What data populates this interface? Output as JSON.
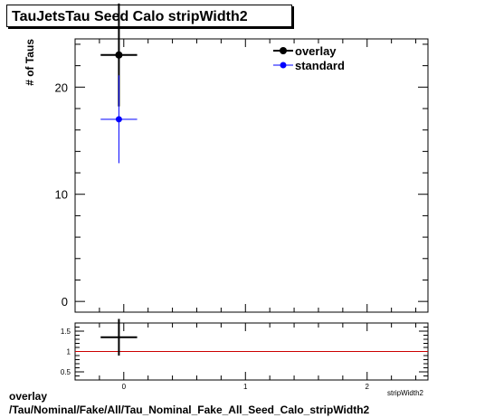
{
  "title": "TauJetsTau Seed Calo stripWidth2",
  "footer": {
    "line1": "overlay",
    "line2": "/Tau/Nominal/Fake/All/Tau_Nominal_Fake_All_Seed_Calo_stripWidth2"
  },
  "colors": {
    "overlay": "#000000",
    "standard": "#0000ff",
    "ratio_line": "#cc0000"
  },
  "chart_data": [
    {
      "type": "scatter",
      "ylabel": "# of Taus",
      "xlabel": "stripWidth2",
      "xlim": [
        -0.4,
        2.5
      ],
      "ylim": [
        -1,
        24.5
      ],
      "x_ticks": [
        0,
        1,
        2
      ],
      "y_ticks": [
        0,
        10,
        20
      ],
      "legend": {
        "placement": "top-right",
        "entries": [
          "overlay",
          "standard"
        ]
      },
      "series": [
        {
          "name": "overlay",
          "x": [
            -0.04
          ],
          "y": [
            23
          ],
          "xerr": [
            0.15
          ],
          "yerr_low": [
            4.8
          ],
          "yerr_high": [
            4.8
          ]
        },
        {
          "name": "standard",
          "x": [
            -0.04
          ],
          "y": [
            17
          ],
          "xerr": [
            0.15
          ],
          "yerr_low": [
            4.1
          ],
          "yerr_high": [
            4.1
          ]
        }
      ]
    },
    {
      "type": "scatter",
      "xlabel": "stripWidth2",
      "xlim": [
        -0.4,
        2.5
      ],
      "ylim": [
        0.3,
        1.7
      ],
      "y_ticks": [
        0.5,
        1,
        1.5
      ],
      "reference_line": 1,
      "series": [
        {
          "name": "ratio",
          "x": [
            -0.04
          ],
          "y": [
            1.35
          ],
          "xerr": [
            0.15
          ],
          "yerr_low": [
            0.45
          ],
          "yerr_high": [
            0.45
          ]
        }
      ]
    }
  ]
}
